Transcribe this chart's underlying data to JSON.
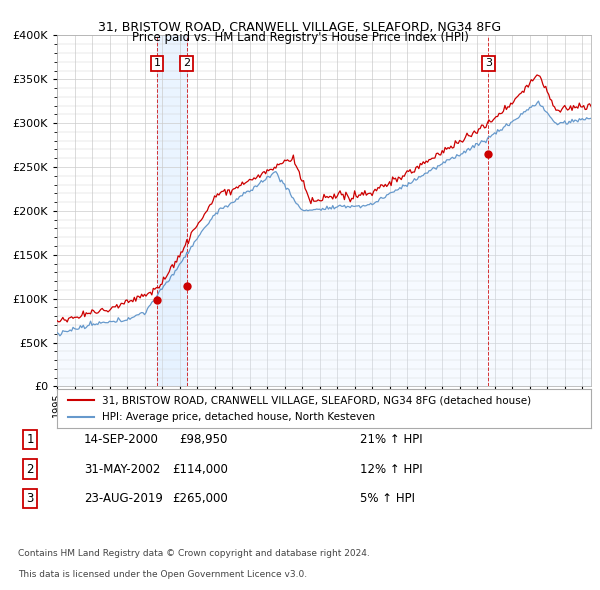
{
  "title1": "31, BRISTOW ROAD, CRANWELL VILLAGE, SLEAFORD, NG34 8FG",
  "title2": "Price paid vs. HM Land Registry's House Price Index (HPI)",
  "legend_line1": "31, BRISTOW ROAD, CRANWELL VILLAGE, SLEAFORD, NG34 8FG (detached house)",
  "legend_line2": "HPI: Average price, detached house, North Kesteven",
  "transactions": [
    {
      "num": 1,
      "date": "14-SEP-2000",
      "price": "£98,950",
      "hpi": "21% ↑ HPI",
      "year": 2000.71
    },
    {
      "num": 2,
      "date": "31-MAY-2002",
      "price": "£114,000",
      "hpi": "12% ↑ HPI",
      "year": 2002.41
    },
    {
      "num": 3,
      "date": "23-AUG-2019",
      "price": "£265,000",
      "hpi": "5% ↑ HPI",
      "year": 2019.64
    }
  ],
  "transaction_prices": [
    98950,
    114000,
    265000
  ],
  "footnote1": "Contains HM Land Registry data © Crown copyright and database right 2024.",
  "footnote2": "This data is licensed under the Open Government Licence v3.0.",
  "red_color": "#cc0000",
  "blue_color": "#6699cc",
  "blue_fill": "#ddeeff",
  "grid_color": "#cccccc",
  "ylim": [
    0,
    400000
  ],
  "xlim_start": 1995.0,
  "xlim_end": 2025.5
}
